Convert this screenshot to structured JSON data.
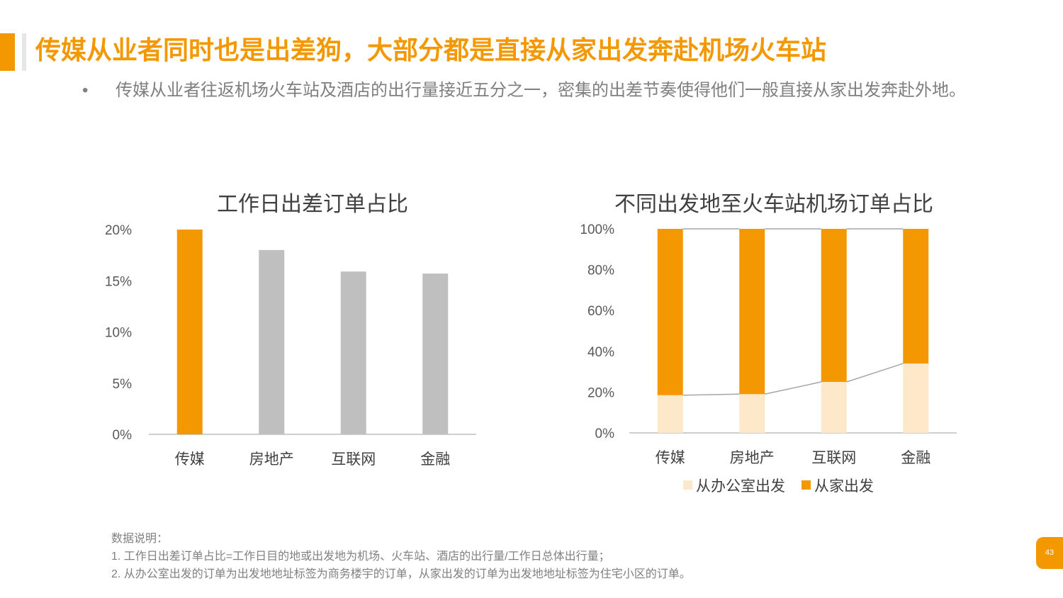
{
  "header": {
    "title": "传媒从业者同时也是出差狗，大部分都是直接从家出发奔赴机场火车站",
    "bullet": "•",
    "subtitle": "传媒从业者往返机场火车站及酒店的出行量接近五分之一，密集的出差节奏使得他们一般直接从家出发奔赴外地。"
  },
  "colors": {
    "accent": "#f39800",
    "gray_bar": "#bfbfbf",
    "light_orange": "#fde9c9",
    "line": "#a6a6a6"
  },
  "chart_data": [
    {
      "type": "bar",
      "title": "工作日出差订单占比",
      "categories": [
        "传媒",
        "房地产",
        "互联网",
        "金融"
      ],
      "values": [
        20,
        18,
        15.9,
        15.7
      ],
      "highlight": [
        true,
        false,
        false,
        false
      ],
      "ylim": [
        0,
        20
      ],
      "yticks": [
        "0%",
        "5%",
        "10%",
        "15%",
        "20%"
      ],
      "xlabel": "",
      "ylabel": ""
    },
    {
      "type": "bar",
      "stacked": "percent",
      "title": "不同出发地至火车站机场订单占比",
      "categories": [
        "传媒",
        "房地产",
        "互联网",
        "金融"
      ],
      "series": [
        {
          "name": "从办公室出发",
          "values": [
            18.5,
            19,
            25,
            34
          ]
        },
        {
          "name": "从家出发",
          "values": [
            81.5,
            81,
            75,
            66
          ]
        }
      ],
      "ylim": [
        0,
        100
      ],
      "yticks": [
        "0%",
        "20%",
        "40%",
        "60%",
        "80%",
        "100%"
      ],
      "legend": "bottom",
      "xlabel": "",
      "ylabel": ""
    }
  ],
  "notes": {
    "heading": "数据说明：",
    "line1": "1. 工作日出差订单占比=工作日目的地或出发地为机场、火车站、酒店的出行量/工作日总体出行量；",
    "line2": "2. 从办公室出发的订单为出发地地址标签为商务楼宇的订单，从家出发的订单为出发地地址标签为住宅小区的订单。"
  },
  "page_number": "43"
}
